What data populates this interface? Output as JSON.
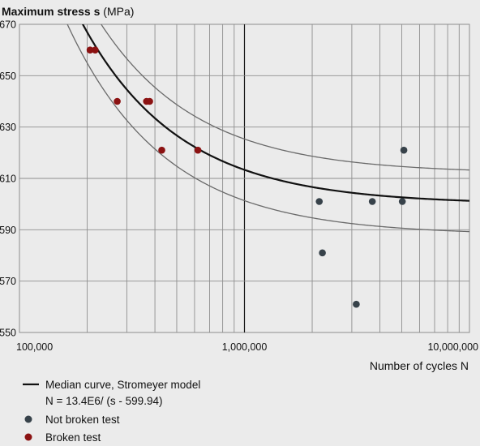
{
  "chart_data": {
    "type": "scatter",
    "title": "",
    "ylabel": "Maximum stress",
    "ylabel_symbol": "s",
    "ylabel_unit": "(MPa)",
    "xlabel": "Number of cycles N",
    "xscale": "log",
    "xlim": [
      100000,
      10000000
    ],
    "ylim": [
      550,
      670
    ],
    "x_tick_labels": [
      "100,000",
      "1,000,000",
      "10,000,000"
    ],
    "x_ticks": [
      100000,
      1000000,
      10000000
    ],
    "y_ticks": [
      550,
      570,
      590,
      610,
      630,
      650,
      670
    ],
    "y_tick_labels": [
      "550",
      "570",
      "590",
      "610",
      "630",
      "650",
      "670"
    ],
    "grid": true,
    "median_curve": {
      "a": 13400000,
      "b": 599.94
    },
    "band_offset": 12,
    "series": [
      {
        "name": "Not broken test",
        "color": "#37424a",
        "points": [
          {
            "x": 2150000,
            "y": 601
          },
          {
            "x": 2220000,
            "y": 581
          },
          {
            "x": 3140000,
            "y": 561
          },
          {
            "x": 3700000,
            "y": 601
          },
          {
            "x": 5030000,
            "y": 601
          },
          {
            "x": 5110000,
            "y": 621
          }
        ]
      },
      {
        "name": "Broken test",
        "color": "#8b1212",
        "points": [
          {
            "x": 206000,
            "y": 660
          },
          {
            "x": 217000,
            "y": 660
          },
          {
            "x": 272000,
            "y": 640
          },
          {
            "x": 367000,
            "y": 640
          },
          {
            "x": 379000,
            "y": 640
          },
          {
            "x": 429000,
            "y": 621
          },
          {
            "x": 621000,
            "y": 621
          }
        ]
      }
    ],
    "legend": {
      "position": "bottom-left",
      "curve_label": "Median curve, Stromeyer model",
      "formula": "N = 13.4E6/ (s - 599.94)"
    },
    "colors": {
      "background": "#ebebeb",
      "grid": "#8e8e8e",
      "curve": "#111111",
      "band": "#6a6a6a",
      "text": "#111111"
    }
  }
}
